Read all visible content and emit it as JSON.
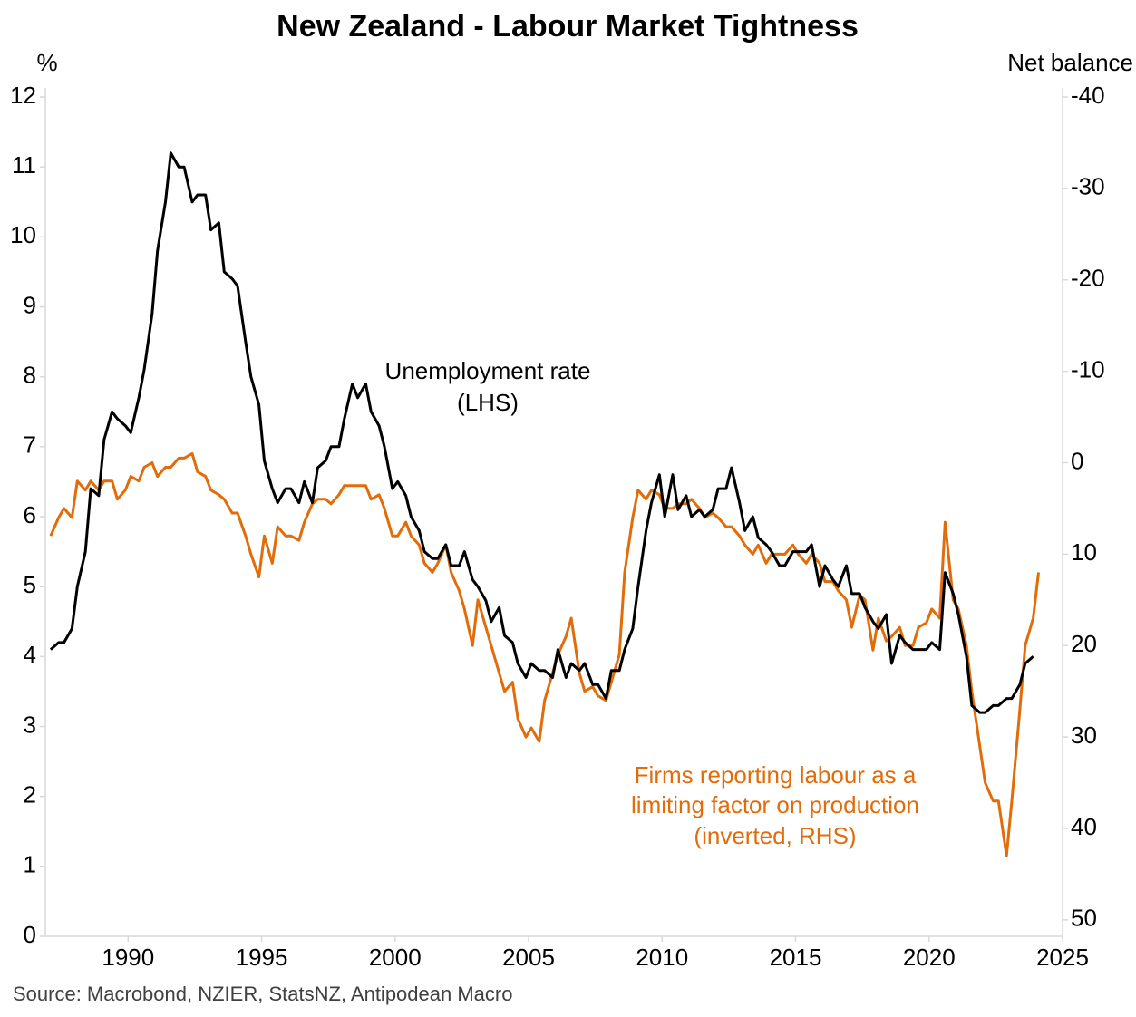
{
  "chart_data": {
    "type": "line",
    "title": "New Zealand - Labour Market Tightness",
    "y_label": "%",
    "y2_label": "Net balance",
    "source": "Source: Macrobond, NZIER, StatsNZ, Antipodean Macro",
    "annotations": [
      {
        "lines": [
          "Unemployment rate",
          "(LHS)"
        ],
        "color": "#000000"
      },
      {
        "lines": [
          "Firms reporting labour as a",
          "limiting factor on production",
          "(inverted, RHS)"
        ],
        "color": "#e36c0a"
      }
    ],
    "xlim": [
      1986.9,
      2025
    ],
    "xticks": [
      1990,
      1995,
      2000,
      2005,
      2010,
      2015,
      2020,
      2025
    ],
    "ylim": [
      0,
      12
    ],
    "yticks": [
      0,
      1,
      2,
      3,
      4,
      5,
      6,
      7,
      8,
      9,
      10,
      11,
      12
    ],
    "y2lim": [
      51.8,
      -40
    ],
    "y2ticks": [
      50,
      40,
      30,
      20,
      10,
      0,
      -10,
      -20,
      -30,
      -40
    ],
    "series": [
      {
        "name": "Unemployment rate (LHS)",
        "color": "#000000",
        "axis": "y",
        "x": [
          1987.1,
          1987.4,
          1987.6,
          1987.9,
          1988.1,
          1988.4,
          1988.6,
          1988.9,
          1989.1,
          1989.4,
          1989.6,
          1989.9,
          1990.1,
          1990.4,
          1990.6,
          1990.9,
          1991.1,
          1991.4,
          1991.6,
          1991.9,
          1992.1,
          1992.4,
          1992.6,
          1992.9,
          1993.1,
          1993.4,
          1993.6,
          1993.9,
          1994.1,
          1994.4,
          1994.6,
          1994.9,
          1995.1,
          1995.4,
          1995.6,
          1995.9,
          1996.1,
          1996.4,
          1996.6,
          1996.9,
          1997.1,
          1997.4,
          1997.6,
          1997.9,
          1998.1,
          1998.4,
          1998.6,
          1998.9,
          1999.1,
          1999.4,
          1999.6,
          1999.9,
          2000.1,
          2000.4,
          2000.6,
          2000.9,
          2001.1,
          2001.4,
          2001.6,
          2001.9,
          2002.1,
          2002.4,
          2002.6,
          2002.9,
          2003.1,
          2003.4,
          2003.6,
          2003.9,
          2004.1,
          2004.4,
          2004.6,
          2004.9,
          2005.1,
          2005.4,
          2005.6,
          2005.9,
          2006.1,
          2006.4,
          2006.6,
          2006.9,
          2007.1,
          2007.4,
          2007.6,
          2007.9,
          2008.1,
          2008.4,
          2008.6,
          2008.9,
          2009.1,
          2009.4,
          2009.6,
          2009.9,
          2010.1,
          2010.4,
          2010.6,
          2010.9,
          2011.1,
          2011.4,
          2011.6,
          2011.9,
          2012.1,
          2012.4,
          2012.6,
          2012.9,
          2013.1,
          2013.4,
          2013.6,
          2013.9,
          2014.1,
          2014.4,
          2014.6,
          2014.9,
          2015.1,
          2015.4,
          2015.6,
          2015.9,
          2016.1,
          2016.4,
          2016.6,
          2016.9,
          2017.1,
          2017.4,
          2017.6,
          2017.9,
          2018.1,
          2018.4,
          2018.6,
          2018.9,
          2019.1,
          2019.4,
          2019.6,
          2019.9,
          2020.1,
          2020.4,
          2020.6,
          2020.9,
          2021.1,
          2021.4,
          2021.6,
          2021.9,
          2022.1,
          2022.4,
          2022.6,
          2022.9,
          2023.1,
          2023.4,
          2023.6,
          2023.9
        ],
        "values": [
          4.1,
          4.2,
          4.2,
          4.4,
          5.0,
          5.5,
          6.4,
          6.3,
          7.1,
          7.5,
          7.4,
          7.3,
          7.2,
          7.7,
          8.1,
          8.9,
          9.8,
          10.5,
          11.2,
          11.0,
          11.0,
          10.5,
          10.6,
          10.6,
          10.1,
          10.2,
          9.5,
          9.4,
          9.3,
          8.5,
          8.0,
          7.6,
          6.8,
          6.4,
          6.2,
          6.4,
          6.4,
          6.2,
          6.5,
          6.2,
          6.7,
          6.8,
          7.0,
          7.0,
          7.4,
          7.9,
          7.7,
          7.9,
          7.5,
          7.3,
          7.0,
          6.4,
          6.5,
          6.3,
          6.0,
          5.8,
          5.5,
          5.4,
          5.4,
          5.6,
          5.3,
          5.3,
          5.5,
          5.1,
          5.0,
          4.8,
          4.5,
          4.7,
          4.3,
          4.2,
          3.9,
          3.7,
          3.9,
          3.8,
          3.8,
          3.7,
          4.1,
          3.7,
          3.9,
          3.8,
          3.9,
          3.6,
          3.6,
          3.4,
          3.8,
          3.8,
          4.1,
          4.4,
          5.0,
          5.8,
          6.2,
          6.6,
          6.0,
          6.6,
          6.1,
          6.3,
          6.0,
          6.1,
          6.0,
          6.1,
          6.4,
          6.4,
          6.7,
          6.2,
          5.8,
          6.0,
          5.7,
          5.6,
          5.5,
          5.3,
          5.3,
          5.5,
          5.5,
          5.5,
          5.6,
          5.0,
          5.3,
          5.1,
          5.0,
          5.3,
          4.9,
          4.9,
          4.7,
          4.5,
          4.4,
          4.6,
          3.9,
          4.3,
          4.2,
          4.1,
          4.1,
          4.1,
          4.2,
          4.1,
          5.2,
          4.9,
          4.6,
          4.0,
          3.3,
          3.2,
          3.2,
          3.3,
          3.3,
          3.4,
          3.4,
          3.6,
          3.9,
          4.0
        ]
      },
      {
        "name": "Firms reporting labour as a limiting factor on production (inverted, RHS)",
        "color": "#e36c0a",
        "axis": "y2",
        "x": [
          1987.1,
          1987.4,
          1987.6,
          1987.9,
          1988.1,
          1988.4,
          1988.6,
          1988.9,
          1989.1,
          1989.4,
          1989.6,
          1989.9,
          1990.1,
          1990.4,
          1990.6,
          1990.9,
          1991.1,
          1991.4,
          1991.6,
          1991.9,
          1992.1,
          1992.4,
          1992.6,
          1992.9,
          1993.1,
          1993.4,
          1993.6,
          1993.9,
          1994.1,
          1994.4,
          1994.6,
          1994.9,
          1995.1,
          1995.4,
          1995.6,
          1995.9,
          1996.1,
          1996.4,
          1996.6,
          1996.9,
          1997.1,
          1997.4,
          1997.6,
          1997.9,
          1998.1,
          1998.4,
          1998.6,
          1998.9,
          1999.1,
          1999.4,
          1999.6,
          1999.9,
          2000.1,
          2000.4,
          2000.6,
          2000.9,
          2001.1,
          2001.4,
          2001.6,
          2001.9,
          2002.1,
          2002.4,
          2002.6,
          2002.9,
          2003.1,
          2003.4,
          2003.6,
          2003.9,
          2004.1,
          2004.4,
          2004.6,
          2004.9,
          2005.1,
          2005.4,
          2005.6,
          2005.9,
          2006.1,
          2006.4,
          2006.6,
          2006.9,
          2007.1,
          2007.4,
          2007.6,
          2007.9,
          2008.1,
          2008.4,
          2008.6,
          2008.9,
          2009.1,
          2009.4,
          2009.6,
          2009.9,
          2010.1,
          2010.4,
          2010.6,
          2010.9,
          2011.1,
          2011.4,
          2011.6,
          2011.9,
          2012.1,
          2012.4,
          2012.6,
          2012.9,
          2013.1,
          2013.4,
          2013.6,
          2013.9,
          2014.1,
          2014.4,
          2014.6,
          2014.9,
          2015.1,
          2015.4,
          2015.6,
          2015.9,
          2016.1,
          2016.4,
          2016.6,
          2016.9,
          2017.1,
          2017.4,
          2017.6,
          2017.9,
          2018.1,
          2018.4,
          2018.6,
          2018.9,
          2019.1,
          2019.4,
          2019.6,
          2019.9,
          2020.1,
          2020.4,
          2020.6,
          2020.9,
          2021.1,
          2021.4,
          2021.6,
          2021.9,
          2022.1,
          2022.4,
          2022.6,
          2022.9,
          2023.1,
          2023.4,
          2023.6,
          2023.9,
          2024.1
        ],
        "values": [
          8,
          6,
          5,
          6,
          2,
          3,
          2,
          3,
          2,
          2,
          4,
          3,
          1.5,
          2,
          0.5,
          0,
          1.5,
          0.5,
          0.5,
          -0.5,
          -0.5,
          -1,
          1,
          1.5,
          3,
          3.5,
          4,
          5.5,
          5.5,
          8,
          10,
          12.5,
          8,
          11,
          7,
          8,
          8,
          8.5,
          6.5,
          4.5,
          4,
          4,
          4.5,
          3.5,
          2.5,
          2.5,
          2.5,
          2.5,
          4,
          3.5,
          5,
          8,
          8,
          6.5,
          8,
          9,
          11,
          12,
          11,
          9,
          12,
          14,
          16,
          20,
          15,
          18,
          20,
          23,
          25,
          24,
          28,
          30,
          29,
          30.5,
          26,
          23,
          21,
          19,
          17,
          23,
          25,
          24.5,
          25.5,
          26,
          24,
          21,
          12,
          6,
          3,
          4,
          3,
          3.5,
          5,
          5,
          4.5,
          4.5,
          4,
          5,
          6,
          5.5,
          6,
          7,
          7,
          8,
          9,
          10,
          9,
          11,
          10,
          10,
          10,
          9,
          10,
          11,
          10,
          11,
          13,
          13,
          14,
          15,
          18,
          14.5,
          15,
          20.5,
          17,
          19.5,
          19,
          18,
          20,
          20,
          18,
          17.5,
          16,
          17,
          6.5,
          15,
          16,
          20,
          25,
          31,
          35,
          37,
          37,
          43,
          37,
          27,
          20,
          17,
          12
        ]
      }
    ]
  }
}
